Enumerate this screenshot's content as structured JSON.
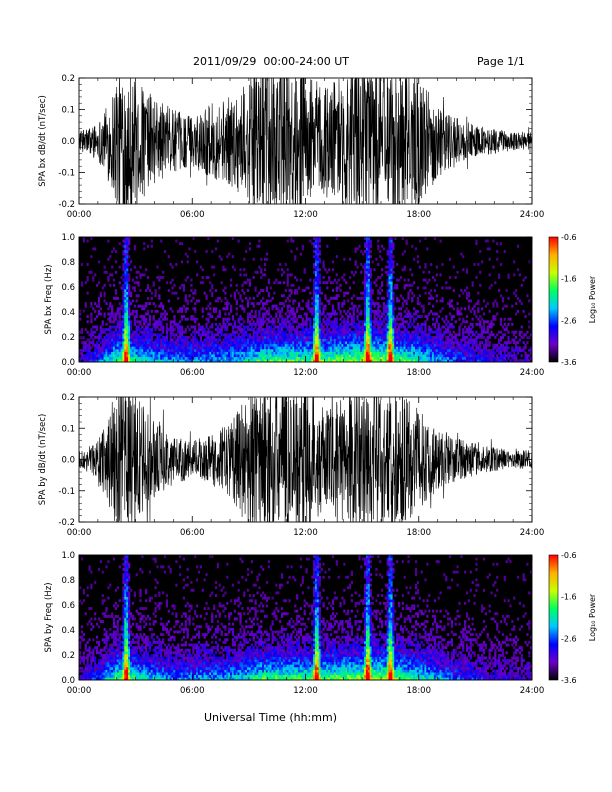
{
  "header": {
    "title": "2011/09/29  00:00-24:00 UT",
    "page": "Page 1/1"
  },
  "colorbar": {
    "label": "Log₁₀ Power",
    "ticks": [
      "-0.6",
      "-1.6",
      "-2.6",
      "-3.6"
    ],
    "range": [
      -3.6,
      -0.6
    ],
    "colors": [
      "#000000",
      "#6a00c8",
      "#0000ff",
      "#00c8ff",
      "#00ff60",
      "#c8ff00",
      "#ffb000",
      "#ff0000"
    ]
  },
  "xaxis": {
    "label": "Universal Time (hh:mm)",
    "ticks": [
      "00:00",
      "06:00",
      "12:00",
      "18:00",
      "24:00"
    ],
    "range_hours": [
      0,
      24
    ]
  },
  "chart_data": [
    {
      "type": "line",
      "ylabel": "SPA bx dB/dt (nT/sec)",
      "ylim": [
        -0.2,
        0.2
      ],
      "yticks": [
        "-0.2",
        "-0.1",
        "0.0",
        "0.1",
        "0.2"
      ],
      "amplitude_envelope": {
        "x_hours": [
          0,
          1,
          1.5,
          2,
          2.5,
          3,
          4,
          5,
          6,
          7,
          8,
          9,
          10,
          11,
          12,
          13,
          14,
          15,
          16,
          17,
          18,
          19,
          20,
          21,
          22,
          23,
          24
        ],
        "amp": [
          0.03,
          0.06,
          0.12,
          0.22,
          0.25,
          0.2,
          0.14,
          0.1,
          0.08,
          0.12,
          0.14,
          0.2,
          0.25,
          0.25,
          0.22,
          0.18,
          0.22,
          0.25,
          0.25,
          0.24,
          0.2,
          0.12,
          0.08,
          0.05,
          0.04,
          0.03,
          0.03
        ]
      }
    },
    {
      "type": "heatmap",
      "ylabel": "SPA bx Freq (Hz)",
      "ylim": [
        0,
        1.0
      ],
      "yticks": [
        "0.0",
        "0.2",
        "0.4",
        "0.6",
        "0.8",
        "1.0"
      ],
      "z_label": "Log₁₀ Power",
      "z_range": [
        -3.6,
        -0.6
      ],
      "bright_bands_hours": [
        2.5,
        12.6,
        15.3,
        16.5
      ]
    },
    {
      "type": "line",
      "ylabel": "SPA by dB/dt (nT/sec)",
      "ylim": [
        -0.2,
        0.2
      ],
      "yticks": [
        "-0.2",
        "-0.1",
        "0.0",
        "0.1",
        "0.2"
      ],
      "amplitude_envelope": {
        "x_hours": [
          0,
          1,
          1.5,
          2,
          2.5,
          3,
          4,
          5,
          6,
          7,
          8,
          9,
          10,
          11,
          12,
          13,
          14,
          15,
          16,
          17,
          18,
          19,
          20,
          21,
          22,
          23,
          24
        ],
        "amp": [
          0.03,
          0.06,
          0.14,
          0.24,
          0.25,
          0.22,
          0.12,
          0.08,
          0.06,
          0.08,
          0.12,
          0.22,
          0.25,
          0.25,
          0.24,
          0.16,
          0.2,
          0.25,
          0.25,
          0.22,
          0.16,
          0.1,
          0.07,
          0.05,
          0.04,
          0.03,
          0.03
        ]
      }
    },
    {
      "type": "heatmap",
      "ylabel": "SPA by Freq (Hz)",
      "ylim": [
        0,
        1.0
      ],
      "yticks": [
        "0.0",
        "0.2",
        "0.4",
        "0.6",
        "0.8",
        "1.0"
      ],
      "z_label": "Log₁₀ Power",
      "z_range": [
        -3.6,
        -0.6
      ],
      "bright_bands_hours": [
        2.5,
        12.6,
        15.3,
        16.5
      ]
    }
  ]
}
